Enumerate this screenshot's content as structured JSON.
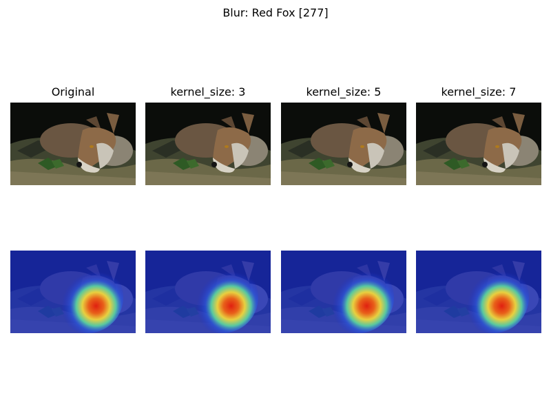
{
  "figure": {
    "title": "Blur: Red Fox [277]",
    "columns": [
      {
        "title": "Original"
      },
      {
        "title": "kernel_size: 3"
      },
      {
        "title": "kernel_size: 5"
      },
      {
        "title": "kernel_size: 7"
      }
    ]
  },
  "colors": {
    "background": "#ffffff",
    "heatmap_low": "#1a2fd0",
    "heatmap_high": "#e02010"
  }
}
